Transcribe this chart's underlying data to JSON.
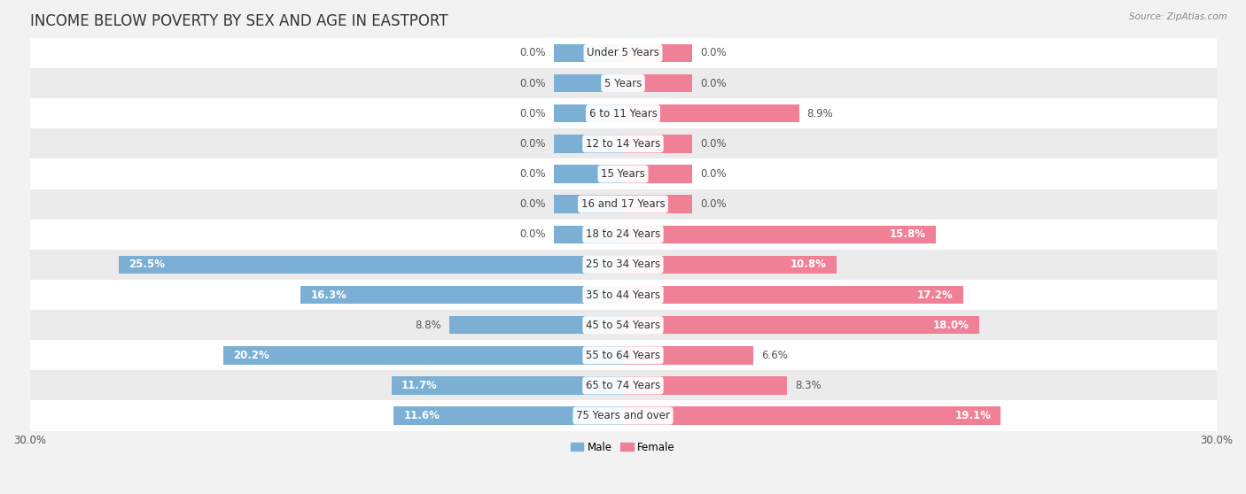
{
  "title": "INCOME BELOW POVERTY BY SEX AND AGE IN EASTPORT",
  "source": "Source: ZipAtlas.com",
  "categories": [
    "Under 5 Years",
    "5 Years",
    "6 to 11 Years",
    "12 to 14 Years",
    "15 Years",
    "16 and 17 Years",
    "18 to 24 Years",
    "25 to 34 Years",
    "35 to 44 Years",
    "45 to 54 Years",
    "55 to 64 Years",
    "65 to 74 Years",
    "75 Years and over"
  ],
  "male": [
    0.0,
    0.0,
    0.0,
    0.0,
    0.0,
    0.0,
    0.0,
    25.5,
    16.3,
    8.8,
    20.2,
    11.7,
    11.6
  ],
  "female": [
    0.0,
    0.0,
    8.9,
    0.0,
    0.0,
    0.0,
    15.8,
    10.8,
    17.2,
    18.0,
    6.6,
    8.3,
    19.1
  ],
  "male_color": "#7bafd4",
  "female_color": "#f08096",
  "male_label": "Male",
  "female_label": "Female",
  "xlim": 30.0,
  "zero_stub": 3.5,
  "background_color": "#f2f2f2",
  "row_bg_colors": [
    "#ffffff",
    "#ebebeb"
  ],
  "title_fontsize": 12,
  "label_fontsize": 8.5,
  "axis_fontsize": 8.5,
  "cat_label_fontsize": 8.5
}
